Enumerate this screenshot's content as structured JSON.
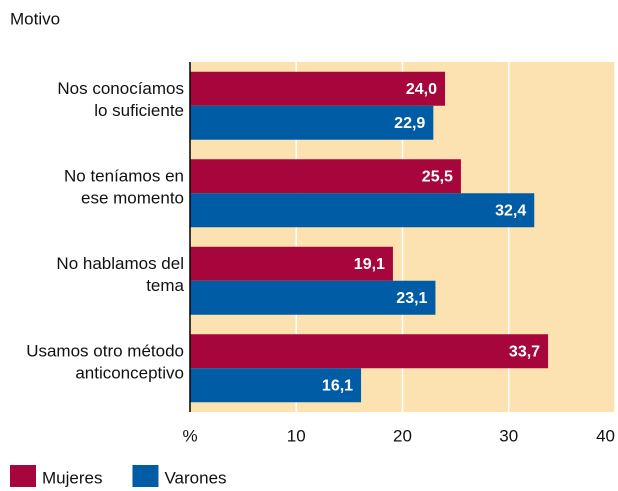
{
  "chart_data": {
    "type": "hbar",
    "y_axis_label": "Motivo",
    "categories": [
      "Nos conocíamos\nlo suficiente",
      "No teníamos en\nese momento",
      "No hablamos del\ntema",
      "Usamos otro método\nanticonceptivo"
    ],
    "series": [
      {
        "name": "Mujeres",
        "color": "#a6063c",
        "values": [
          24.0,
          25.5,
          19.1,
          33.7
        ],
        "value_labels": [
          "24,0",
          "25,5",
          "19,1",
          "33,7"
        ]
      },
      {
        "name": "Varones",
        "color": "#005ca4",
        "values": [
          22.9,
          32.4,
          23.1,
          16.1
        ],
        "value_labels": [
          "22,9",
          "32,4",
          "23,1",
          "16,1"
        ]
      }
    ],
    "xlim": [
      0,
      40
    ],
    "xticks": [
      {
        "value": 0,
        "label": "%"
      },
      10,
      20,
      30,
      40
    ],
    "grid": true,
    "background": "#fbe2b0"
  }
}
